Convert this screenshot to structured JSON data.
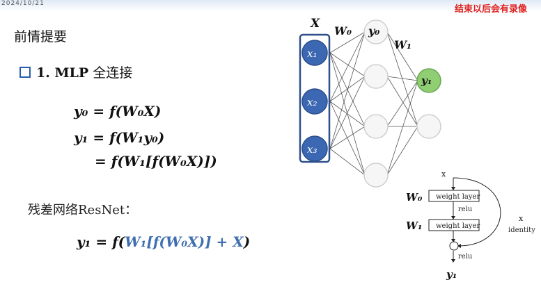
{
  "header": {
    "date": "2024/10/21",
    "recording": "结束以后会有录像"
  },
  "slide": {
    "heading": "前情提要",
    "bullet_num": "1. MLP",
    "bullet_label": "全连接",
    "eq1": "y₀ = f(W₀X)",
    "eq2": "y₁ = f(W₁y₀)",
    "eq3": "= f(W₁[f(W₀X)])",
    "resnet_label": "残差网络ResNet：",
    "eq4_black_1": "y₁ = f(",
    "eq4_blue": "W₁[f(W₀X)] + X",
    "eq4_black_2": ")"
  },
  "mlp_figure": {
    "input_label": "X",
    "inputs": [
      "x₁",
      "x₂",
      "x₃"
    ],
    "hidden_top": "y₀",
    "output": "y₁",
    "w0": "W₀",
    "w1": "W₁",
    "colors": {
      "input": "#3c68b3",
      "output": "#8fce73",
      "box": "#2e4f8a"
    }
  },
  "res_block": {
    "x_in": "x",
    "w0": "W₀",
    "w1": "W₁",
    "layer1": "weight layer",
    "layer2": "weight layer",
    "relu1": "relu",
    "relu2": "relu",
    "skip_x": "x",
    "skip_label": "identity",
    "plus": "⊕",
    "out": "y₁"
  }
}
